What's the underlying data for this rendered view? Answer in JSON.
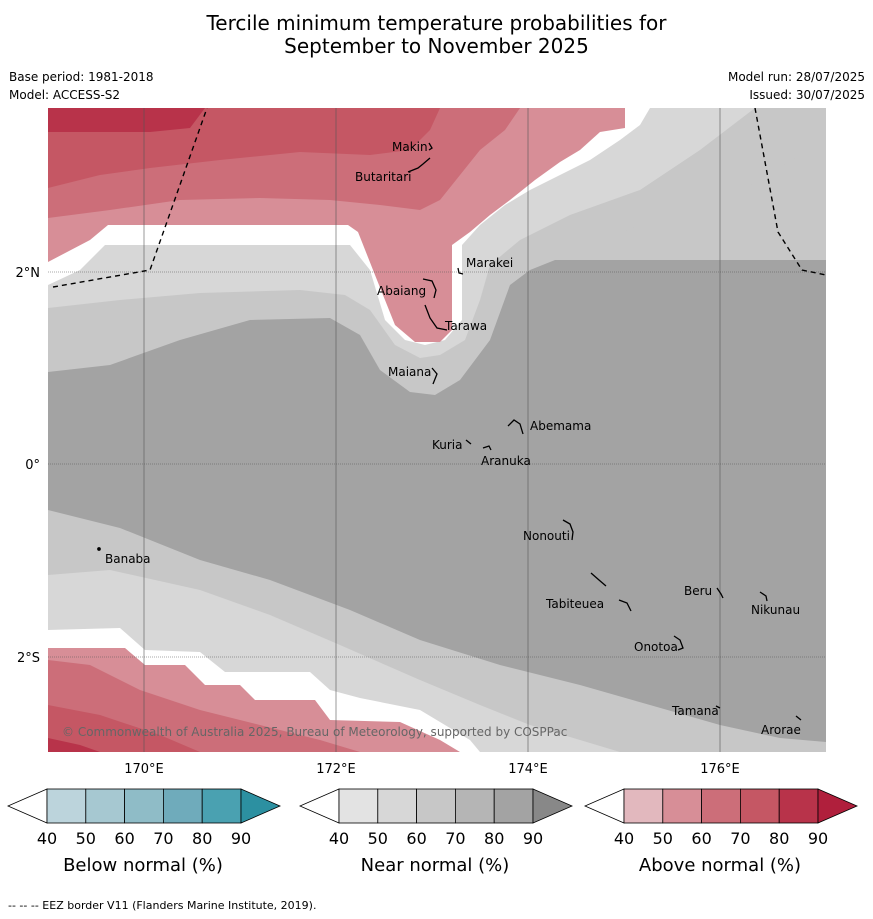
{
  "title_line1": "Tercile minimum temperature probabilities for",
  "title_line2": "September to November 2025",
  "base_period": "Base period: 1981-2018",
  "model": "Model: ACCESS-S2",
  "model_run": "Model run: 28/07/2025",
  "issued": "Issued: 30/07/2025",
  "copyright": "© Commonwealth of Australia 2025, Bureau of Meteorology, supported by COSPPac",
  "footnote": "--  --  -- EEZ border V11 (Flanders Marine Institute, 2019).",
  "lat_labels": [
    "2°N",
    "0°",
    "2°S"
  ],
  "lon_labels": [
    "170°E",
    "172°E",
    "174°E",
    "176°E"
  ],
  "places": [
    "Makin",
    "Butaritari",
    "Marakei",
    "Abaiang",
    "Tarawa",
    "Maiana",
    "Abemama",
    "Kuria",
    "Aranuka",
    "Nonouti",
    "Banaba",
    "Beru",
    "Tabiteuea",
    "Nikunau",
    "Onotoa",
    "Tamana",
    "Arorae"
  ],
  "colorbars": [
    {
      "title": "Below normal (%)",
      "ticks": [
        "40",
        "50",
        "60",
        "70",
        "80",
        "90"
      ],
      "colors": [
        "#ffffff",
        "#bcd4dc",
        "#a6c8d1",
        "#8fbcc7",
        "#6fabbb",
        "#4aa1b1",
        "#2c90a1"
      ]
    },
    {
      "title": "Near normal (%)",
      "ticks": [
        "40",
        "50",
        "60",
        "70",
        "80",
        "90"
      ],
      "colors": [
        "#ffffff",
        "#e3e3e3",
        "#d7d7d7",
        "#c7c7c7",
        "#b5b5b5",
        "#a3a3a3",
        "#888888"
      ]
    },
    {
      "title": "Above normal (%)",
      "ticks": [
        "40",
        "50",
        "60",
        "70",
        "80",
        "90"
      ],
      "colors": [
        "#ffffff",
        "#e2b8be",
        "#d78e97",
        "#cc6e79",
        "#c55764",
        "#b8334a",
        "#b01f3c"
      ]
    }
  ]
}
